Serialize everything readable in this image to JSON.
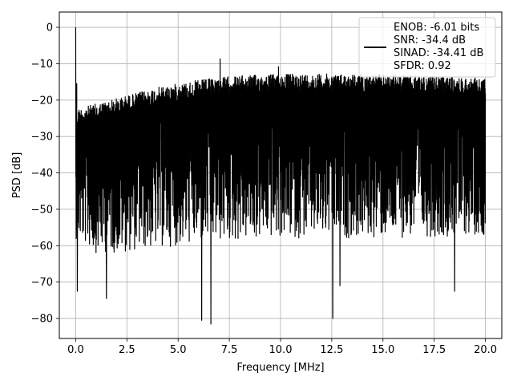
{
  "chart_data": {
    "type": "line",
    "title": "",
    "xlabel": "Frequency [MHz]",
    "ylabel": "PSD [dB]",
    "xlim": [
      -0.8,
      20.8
    ],
    "ylim": [
      -85.5,
      4.2
    ],
    "x_ticks": [
      0.0,
      2.5,
      5.0,
      7.5,
      10.0,
      12.5,
      15.0,
      17.5,
      20.0
    ],
    "x_tick_labels": [
      "0.0",
      "2.5",
      "5.0",
      "7.5",
      "10.0",
      "12.5",
      "15.0",
      "17.5",
      "20.0"
    ],
    "y_ticks": [
      0,
      -10,
      -20,
      -30,
      -40,
      -50,
      -60,
      -70,
      -80
    ],
    "y_tick_labels": [
      "0",
      "−10",
      "−20",
      "−30",
      "−40",
      "−50",
      "−60",
      "−70",
      "−80"
    ],
    "grid": true,
    "legend_position": "top-right",
    "legend_lines": [
      "ENOB: -6.01 bits",
      "SNR: -34.4 dB",
      "SINAD: -34.41 dB",
      "SFDR: 0.92"
    ],
    "series": [
      {
        "color": "#000000",
        "x_range": [
          0.0,
          20.0
        ],
        "upper_envelope": [
          [
            0.0,
            -22.5
          ],
          [
            0.3,
            -22
          ],
          [
            1.0,
            -21
          ],
          [
            2.0,
            -19.5
          ],
          [
            3.0,
            -18
          ],
          [
            4.0,
            -16.5
          ],
          [
            5.0,
            -15.5
          ],
          [
            6.0,
            -14.5
          ],
          [
            7.5,
            -13.5
          ],
          [
            9.0,
            -13
          ],
          [
            10.0,
            -12.8
          ],
          [
            12.5,
            -12.8
          ],
          [
            15.0,
            -13
          ],
          [
            17.5,
            -13.5
          ],
          [
            20.0,
            -14
          ]
        ],
        "lower_envelope": [
          [
            0.0,
            -58
          ],
          [
            1.0,
            -62
          ],
          [
            2.0,
            -62
          ],
          [
            5.0,
            -60
          ],
          [
            10.0,
            -58
          ],
          [
            15.0,
            -58
          ],
          [
            20.0,
            -57
          ]
        ],
        "peaks": [
          [
            0.0,
            0
          ],
          [
            0.05,
            -15.5
          ],
          [
            7.05,
            -8.7
          ],
          [
            9.9,
            -10.8
          ]
        ],
        "troughs": [
          [
            0.08,
            -72.5
          ],
          [
            1.5,
            -74.5
          ],
          [
            6.15,
            -80.5
          ],
          [
            6.6,
            -81.5
          ],
          [
            12.55,
            -80
          ],
          [
            12.9,
            -71
          ],
          [
            18.5,
            -72.5
          ]
        ]
      }
    ]
  }
}
